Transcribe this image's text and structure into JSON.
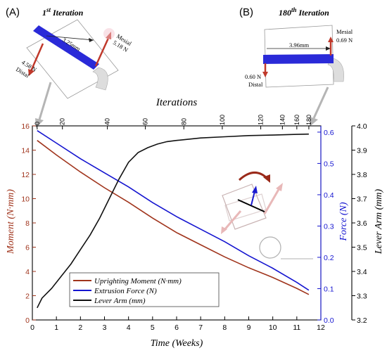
{
  "panel_a": {
    "label": "(A)",
    "title_pre": "1",
    "title_sup": "st",
    "title_post": " Iteration",
    "dist": "3.25mm",
    "mesial_label": "Mesial",
    "mesial_force": "5.18 N",
    "distal_force": "4.58 N",
    "distal_label": "Distal"
  },
  "panel_b": {
    "label": "(B)",
    "title_pre": "180",
    "title_sup": "th",
    "title_post": " Iteration",
    "dist": "3.96mm",
    "mesial_label": "Mesial",
    "mesial_force": "0.69 N",
    "distal_force": "0.60 N",
    "distal_label": "Distal"
  },
  "chart_data": {
    "type": "line",
    "xlabel": "Time (Weeks)",
    "top_xlabel": "Iterations",
    "ylabel_left": "Moment (N·mm)",
    "ylabel_right1": "Force (N)",
    "ylabel_right2": "Lever Arm (mm)",
    "xlim": [
      0,
      12
    ],
    "xticks": [
      0,
      1,
      2,
      3,
      4,
      5,
      6,
      7,
      8,
      9,
      10,
      11,
      12
    ],
    "ylim_left": [
      0,
      16
    ],
    "yticks_left": [
      0,
      2,
      4,
      6,
      8,
      10,
      12,
      14,
      16
    ],
    "ylim_right1": [
      0,
      0.62
    ],
    "yticks_right1": [
      "0.0",
      "0.1",
      "0.2",
      "0.3",
      "0.4",
      "0.5",
      "0.6"
    ],
    "ylim_right2": [
      3.2,
      4.0
    ],
    "yticks_right2": [
      "3.2",
      "3.3",
      "3.4",
      "3.5",
      "3.6",
      "3.7",
      "3.8",
      "3.9",
      "4.0"
    ],
    "top_ticks": [
      {
        "label": "0",
        "x": 0.2
      },
      {
        "label": "20",
        "x": 1.25
      },
      {
        "label": "40",
        "x": 3.12
      },
      {
        "label": "60",
        "x": 4.7
      },
      {
        "label": "80",
        "x": 6.3
      },
      {
        "label": "100",
        "x": 7.9
      },
      {
        "label": "120",
        "x": 9.5
      },
      {
        "label": "140",
        "x": 10.4
      },
      {
        "label": "160",
        "x": 11.0
      },
      {
        "label": "180",
        "x": 11.5
      }
    ],
    "series": [
      {
        "name": "Uprighting Moment (N·mm)",
        "axis": "left",
        "color": "#a0341c",
        "x": [
          0.2,
          1,
          2,
          3,
          4,
          5,
          6,
          7,
          8,
          9,
          10,
          11,
          11.5
        ],
        "y": [
          14.8,
          13.6,
          12.2,
          10.9,
          9.7,
          8.4,
          7.2,
          6.2,
          5.2,
          4.3,
          3.5,
          2.6,
          2.1
        ]
      },
      {
        "name": "Extrusion Force (N)",
        "axis": "right1",
        "color": "#1515d0",
        "x": [
          0.2,
          1,
          2,
          3,
          4,
          5,
          6,
          7,
          8,
          9,
          10,
          11,
          11.5
        ],
        "y": [
          0.605,
          0.565,
          0.515,
          0.47,
          0.425,
          0.375,
          0.33,
          0.29,
          0.25,
          0.205,
          0.165,
          0.12,
          0.095
        ]
      },
      {
        "name": "Lever Arm (mm)",
        "axis": "right2",
        "color": "#111111",
        "x": [
          0.2,
          0.4,
          0.8,
          1.2,
          1.6,
          2.0,
          2.4,
          2.8,
          3.2,
          3.6,
          4.0,
          4.4,
          4.8,
          5.2,
          5.6,
          6.0,
          7.0,
          8.0,
          9.0,
          10.0,
          11.0,
          11.5
        ],
        "y": [
          3.25,
          3.29,
          3.33,
          3.38,
          3.43,
          3.49,
          3.55,
          3.62,
          3.7,
          3.78,
          3.85,
          3.89,
          3.91,
          3.925,
          3.935,
          3.94,
          3.95,
          3.955,
          3.96,
          3.962,
          3.965,
          3.966
        ]
      }
    ],
    "legend_position": "bottom-left"
  }
}
